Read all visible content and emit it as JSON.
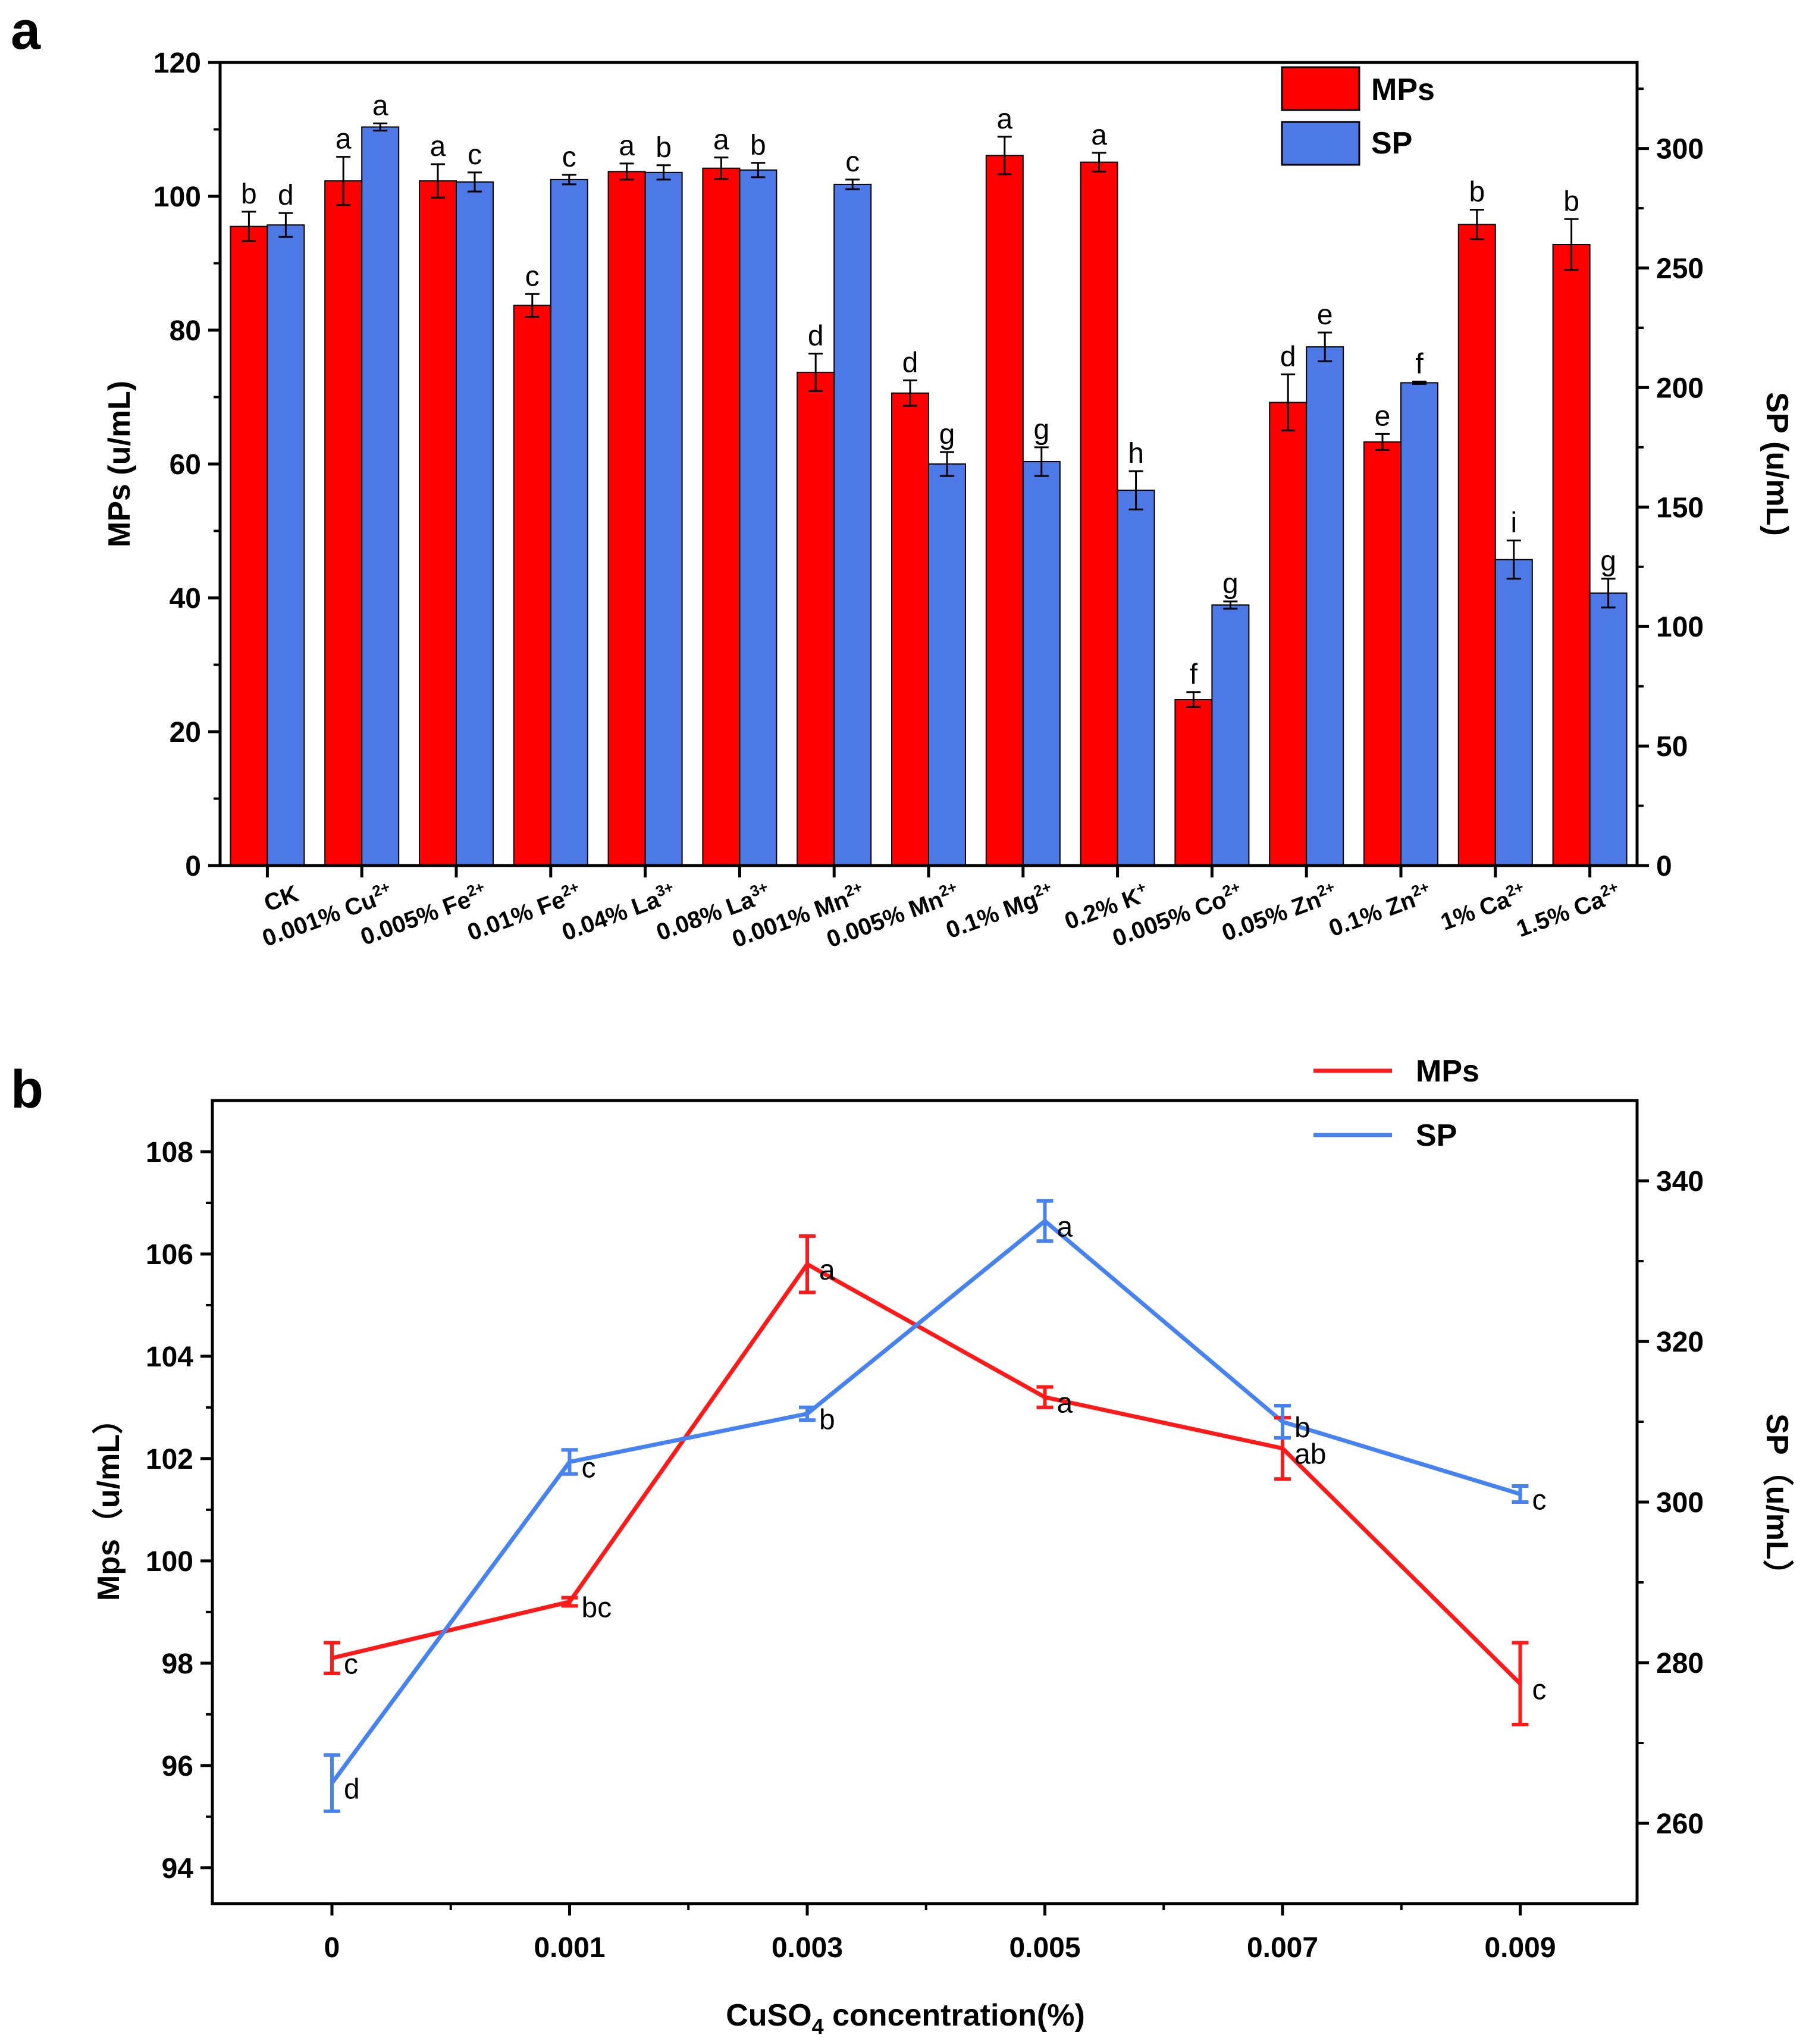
{
  "panels": [
    {
      "label": "a"
    },
    {
      "label": "b"
    }
  ],
  "chart_data": [
    {
      "type": "bar",
      "panel": "a",
      "categories": [
        {
          "base": "CK",
          "sup": ""
        },
        {
          "base": "0.001% Cu",
          "sup": "2+"
        },
        {
          "base": "0.005% Fe",
          "sup": "2+"
        },
        {
          "base": "0.01% Fe",
          "sup": "2+"
        },
        {
          "base": "0.04% La",
          "sup": "3+"
        },
        {
          "base": "0.08% La",
          "sup": "3+"
        },
        {
          "base": "0.001% Mn",
          "sup": "2+"
        },
        {
          "base": "0.005% Mn",
          "sup": "2+"
        },
        {
          "base": "0.1% Mg",
          "sup": "2+"
        },
        {
          "base": "0.2% K",
          "sup": "+"
        },
        {
          "base": "0.005% Co",
          "sup": "2+"
        },
        {
          "base": "0.05% Zn",
          "sup": "2+"
        },
        {
          "base": "0.1% Zn",
          "sup": "2+"
        },
        {
          "base": "1% Ca",
          "sup": "2+"
        },
        {
          "base": "1.5% Ca",
          "sup": "2+"
        }
      ],
      "series": [
        {
          "name": "MPs",
          "axis": "left",
          "color": "#ff0000",
          "values": [
            95.5,
            102.3,
            102.3,
            83.7,
            103.7,
            104.2,
            73.7,
            70.6,
            106.1,
            105.1,
            24.8,
            69.2,
            63.3,
            95.8,
            92.8
          ],
          "errors": [
            2.2,
            3.6,
            2.5,
            1.7,
            1.2,
            1.6,
            2.8,
            1.9,
            2.8,
            1.4,
            1.1,
            4.2,
            1.2,
            2.2,
            3.8
          ],
          "letters": [
            "b",
            "a",
            "a",
            "c",
            "a",
            "a",
            "d",
            "d",
            "a",
            "a",
            "f",
            "d",
            "e",
            "b",
            "b"
          ]
        },
        {
          "name": "SP",
          "axis": "right",
          "color": "#4d79e6",
          "values": [
            268,
            309,
            286,
            287,
            290,
            291,
            285,
            168,
            169,
            157,
            109,
            217,
            202,
            128,
            114
          ],
          "errors": [
            5,
            1.5,
            4,
            2,
            3,
            3,
            2,
            5,
            6,
            8,
            1.5,
            6,
            0.5,
            8,
            6
          ],
          "letters": [
            "d",
            "a",
            "c",
            "c",
            "b",
            "b",
            "c",
            "g",
            "g",
            "h",
            "g",
            "e",
            "f",
            "i",
            "g"
          ]
        }
      ],
      "yleft": {
        "label": "MPs (u/mL)",
        "lim": [
          0,
          120
        ],
        "ticks": [
          "0",
          "20",
          "40",
          "60",
          "80",
          "100",
          "120"
        ]
      },
      "yright": {
        "label": "SP (u/mL)",
        "lim": [
          0,
          336
        ],
        "ticks": [
          "0",
          "50",
          "100",
          "150",
          "200",
          "250",
          "300"
        ]
      },
      "legend": {
        "position": "top-right",
        "entries": [
          "MPs",
          "SP"
        ]
      }
    },
    {
      "type": "line",
      "panel": "b",
      "x": [
        "0",
        "0.001",
        "0.003",
        "0.005",
        "0.007",
        "0.009"
      ],
      "xlabel": "CuSO",
      "xlabel_sub": "4",
      "xlabel_tail": " concentration(%)",
      "series": [
        {
          "name": "MPs",
          "axis": "left",
          "color": "#ff1a1a",
          "values": [
            98.1,
            99.2,
            105.8,
            103.2,
            102.2,
            97.6
          ],
          "errors": [
            0.3,
            0.08,
            0.55,
            0.2,
            0.6,
            0.8
          ],
          "letters": [
            "c",
            "bc",
            "a",
            "a",
            "ab",
            "c"
          ]
        },
        {
          "name": "SP",
          "axis": "right",
          "color": "#4682f0",
          "values": [
            265,
            305,
            311,
            335,
            310,
            301
          ],
          "errors": [
            3.5,
            1.5,
            0.8,
            2.5,
            2,
            1
          ],
          "letters": [
            "d",
            "c",
            "b",
            "a",
            "b",
            "c"
          ]
        }
      ],
      "yleft": {
        "label": "Mps（u/mL）",
        "lim": [
          93.3,
          109
        ],
        "ticks": [
          "94",
          "96",
          "98",
          "100",
          "102",
          "104",
          "106",
          "108"
        ]
      },
      "yright": {
        "label": "SP（u/mL）",
        "lim": [
          250,
          350
        ],
        "ticks": [
          "260",
          "280",
          "300",
          "320",
          "340"
        ]
      },
      "legend": {
        "position": "top-right",
        "entries": [
          "MPs",
          "SP"
        ]
      }
    }
  ]
}
